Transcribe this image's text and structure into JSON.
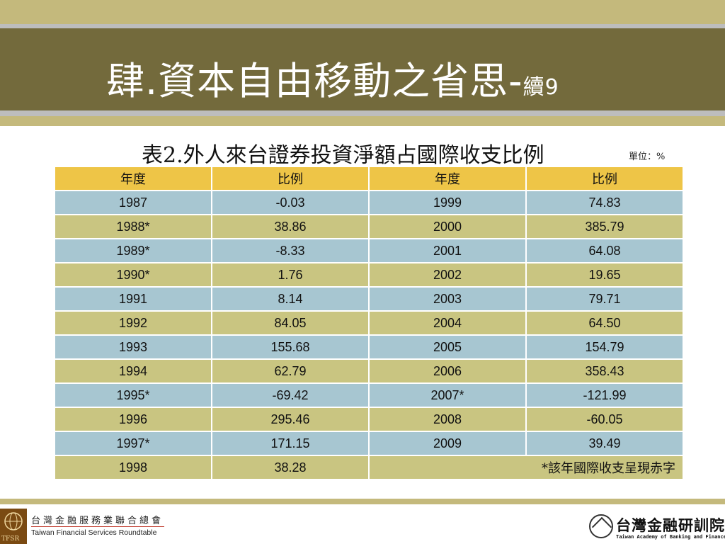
{
  "slide": {
    "title": "肆.資本自由移動之省思-",
    "title_suffix": "續9"
  },
  "table": {
    "caption": "表2.外人來台證券投資淨額占國際收支比例",
    "unit": "單位：%",
    "headers": [
      "年度",
      "比例",
      "年度",
      "比例"
    ],
    "rows": [
      [
        "1987",
        "-0.03",
        "1999",
        "74.83"
      ],
      [
        "1988*",
        "38.86",
        "2000",
        "385.79"
      ],
      [
        "1989*",
        "-8.33",
        "2001",
        "64.08"
      ],
      [
        "1990*",
        "1.76",
        "2002",
        "19.65"
      ],
      [
        "1991",
        "8.14",
        "2003",
        "79.71"
      ],
      [
        "1992",
        "84.05",
        "2004",
        "64.50"
      ],
      [
        "1993",
        "155.68",
        "2005",
        "154.79"
      ],
      [
        "1994",
        "62.79",
        "2006",
        "358.43"
      ],
      [
        "1995*",
        "-69.42",
        "2007*",
        "-121.99"
      ],
      [
        "1996",
        "295.46",
        "2008",
        "-60.05"
      ],
      [
        "1997*",
        "171.15",
        "2009",
        "39.49"
      ]
    ],
    "last_row": [
      "1998",
      "38.28"
    ],
    "note": "*該年國際收支呈現赤字"
  },
  "footer": {
    "left_logo": {
      "emblem_text": "TFSR",
      "name_cn": "台灣金融服務業聯合總會",
      "name_en": "Taiwan Financial Services Roundtable"
    },
    "right_logo": {
      "name_cn": "台灣金融研訓院",
      "name_en": "Taiwan Academy of Banking and Finance"
    }
  },
  "colors": {
    "title_bar": "#736a3c",
    "olive_band": "#c4b97c",
    "header_fill": "#eec547",
    "row_blue": "#a7c6d1",
    "row_olive": "#c9c581"
  }
}
